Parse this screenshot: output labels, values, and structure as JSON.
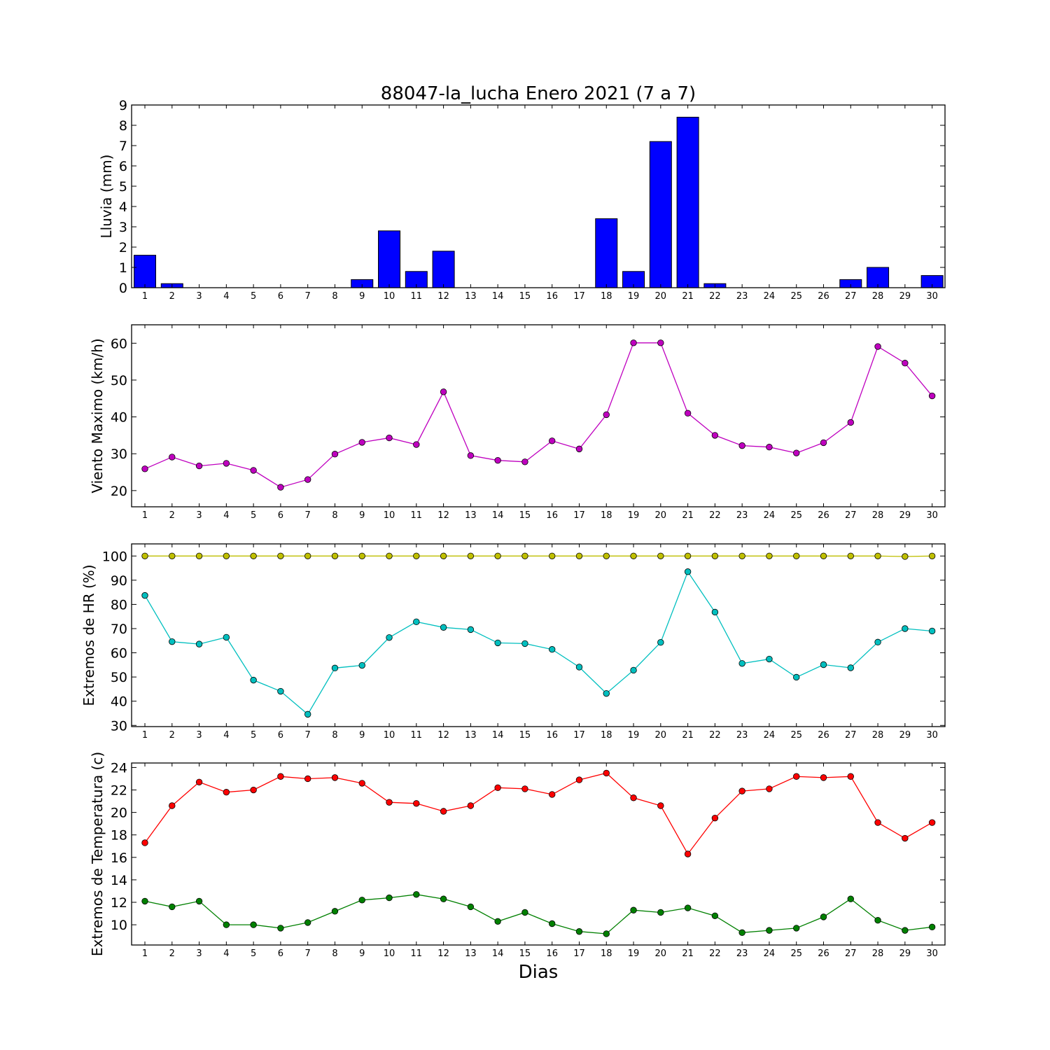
{
  "title": "88047-la_lucha Enero 2021  (7 a 7)",
  "chart_data": [
    {
      "type": "bar",
      "ylabel": "Lluvia (mm)",
      "xlabel": "",
      "categories": [
        "1",
        "2",
        "3",
        "4",
        "5",
        "6",
        "7",
        "8",
        "9",
        "10",
        "11",
        "12",
        "13",
        "14",
        "15",
        "16",
        "17",
        "18",
        "19",
        "20",
        "21",
        "22",
        "23",
        "24",
        "25",
        "26",
        "27",
        "28",
        "29",
        "30"
      ],
      "values": [
        1.6,
        0.2,
        0,
        0,
        0,
        0,
        0,
        0,
        0.4,
        2.8,
        0.8,
        1.8,
        0,
        0,
        0,
        0,
        0,
        3.4,
        0.8,
        7.2,
        8.4,
        0.2,
        0,
        0,
        0,
        0,
        0.4,
        1.0,
        0,
        0.6
      ],
      "ylim": [
        0,
        9
      ],
      "yticks": [
        0,
        1,
        2,
        3,
        4,
        5,
        6,
        7,
        8,
        9
      ],
      "colors": {
        "bar": "#0000ff"
      },
      "grid": false
    },
    {
      "type": "line",
      "ylabel": "Viento Maximo (km/h)",
      "xlabel": "",
      "x": [
        "1",
        "2",
        "3",
        "4",
        "5",
        "6",
        "7",
        "8",
        "9",
        "10",
        "11",
        "12",
        "13",
        "14",
        "15",
        "16",
        "17",
        "18",
        "19",
        "20",
        "21",
        "22",
        "23",
        "24",
        "25",
        "26",
        "27",
        "28",
        "29",
        "30"
      ],
      "series": [
        {
          "values": [
            25.9,
            29.1,
            26.7,
            27.4,
            25.5,
            20.9,
            23.0,
            29.9,
            33.1,
            34.3,
            32.5,
            46.8,
            29.5,
            28.2,
            27.8,
            33.5,
            31.3,
            40.6,
            60.1,
            60.1,
            41.0,
            35.0,
            32.2,
            31.8,
            30.2,
            33.0,
            38.5,
            59.1,
            54.6,
            45.7
          ],
          "color": "#bf00bf"
        }
      ],
      "ylim": [
        15.6,
        65
      ],
      "yticks": [
        20,
        30,
        40,
        50,
        60
      ],
      "grid": false
    },
    {
      "type": "line",
      "ylabel": "Extremos de HR (%)",
      "xlabel": "",
      "x": [
        "1",
        "2",
        "3",
        "4",
        "5",
        "6",
        "7",
        "8",
        "9",
        "10",
        "11",
        "12",
        "13",
        "14",
        "15",
        "16",
        "17",
        "18",
        "19",
        "20",
        "21",
        "22",
        "23",
        "24",
        "25",
        "26",
        "27",
        "28",
        "29",
        "30"
      ],
      "series": [
        {
          "values": [
            100,
            100,
            100,
            100,
            100,
            100,
            100,
            100,
            100,
            100,
            100,
            100,
            100,
            100,
            100,
            100,
            100,
            100,
            100,
            100,
            100,
            100,
            100,
            100,
            100,
            100,
            100,
            100,
            99.8,
            100
          ],
          "color": "#bfbf00"
        },
        {
          "values": [
            83.7,
            64.6,
            63.6,
            66.4,
            48.7,
            44.1,
            34.6,
            53.7,
            54.8,
            66.3,
            72.8,
            70.5,
            69.6,
            64.1,
            63.8,
            61.4,
            54.1,
            43.2,
            52.8,
            64.3,
            93.5,
            76.8,
            55.6,
            57.4,
            49.9,
            55.1,
            53.8,
            64.4,
            70.0,
            69.0
          ],
          "color": "#00bfbf"
        }
      ],
      "ylim": [
        29.5,
        105
      ],
      "yticks": [
        30,
        40,
        50,
        60,
        70,
        80,
        90,
        100
      ],
      "grid": false
    },
    {
      "type": "line",
      "ylabel": "Extremos de Temperatura (c)",
      "xlabel": "Dias",
      "x": [
        "1",
        "2",
        "3",
        "4",
        "5",
        "6",
        "7",
        "8",
        "9",
        "10",
        "11",
        "12",
        "13",
        "14",
        "15",
        "16",
        "17",
        "18",
        "19",
        "20",
        "21",
        "22",
        "23",
        "24",
        "25",
        "26",
        "27",
        "28",
        "29",
        "30"
      ],
      "series": [
        {
          "values": [
            17.3,
            20.6,
            22.7,
            21.8,
            22.0,
            23.2,
            23.0,
            23.1,
            22.6,
            20.9,
            20.8,
            20.1,
            20.6,
            22.2,
            22.1,
            21.6,
            22.9,
            23.5,
            21.3,
            20.6,
            16.3,
            19.5,
            21.9,
            22.1,
            23.2,
            23.1,
            23.2,
            19.1,
            17.7,
            19.1
          ],
          "color": "#ff0000"
        },
        {
          "values": [
            12.1,
            11.6,
            12.1,
            10.0,
            10.0,
            9.7,
            10.2,
            11.2,
            12.2,
            12.4,
            12.7,
            12.3,
            11.6,
            10.3,
            11.1,
            10.1,
            9.4,
            9.2,
            11.3,
            11.1,
            11.5,
            10.8,
            9.3,
            9.5,
            9.7,
            10.7,
            12.3,
            10.4,
            9.5,
            9.8
          ],
          "color": "#008000"
        }
      ],
      "ylim": [
        8.2,
        24.4
      ],
      "yticks": [
        10,
        12,
        14,
        16,
        18,
        20,
        22,
        24
      ],
      "grid": false
    }
  ]
}
